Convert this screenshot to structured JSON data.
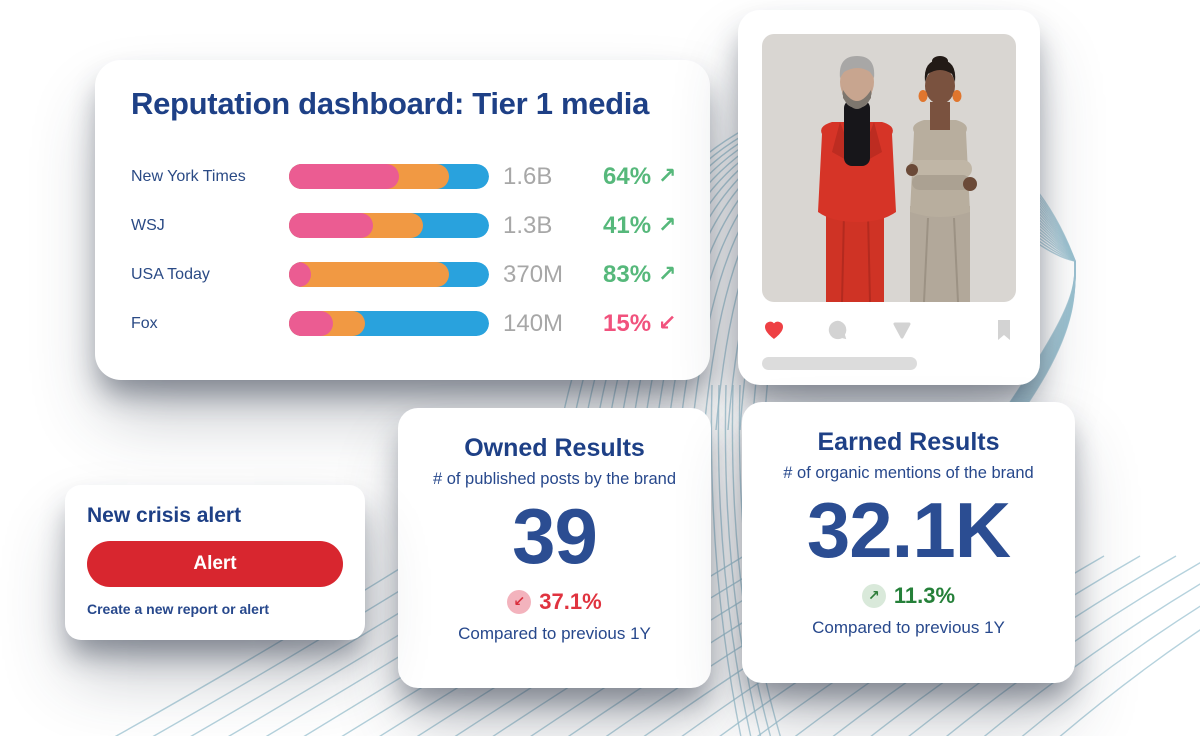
{
  "colors": {
    "navy_heading": "#1e4086",
    "navy_text": "#27488c",
    "bar_pink": "#eb5c92",
    "bar_orange": "#f19943",
    "bar_blue": "#29a2dd",
    "value_gray": "#a7a7a7",
    "trend_up_green": "#56b87b",
    "trend_down_pink": "#f1527d",
    "alert_red": "#d8262f",
    "heart_red": "#ee4044",
    "badge_down_bg": "#f3b3bd",
    "badge_down_fg": "#d92f3d",
    "badge_up_bg": "#d9e9da",
    "badge_up_fg": "#2e7d3a",
    "background_line_blue": "#9cc3d2"
  },
  "reputation_card": {
    "title": "Reputation dashboard: Tier 1 media",
    "rows": [
      {
        "label": "New York Times",
        "value": "1.6B",
        "percent": "64%",
        "trend": "up",
        "pink_pct": 55,
        "orange_pct": 80
      },
      {
        "label": "WSJ",
        "value": "1.3B",
        "percent": "41%",
        "trend": "up",
        "pink_pct": 42,
        "orange_pct": 67
      },
      {
        "label": "USA Today",
        "value": "370M",
        "percent": "83%",
        "trend": "up",
        "pink_pct": 11,
        "orange_pct": 80
      },
      {
        "label": "Fox",
        "value": "140M",
        "percent": "15%",
        "trend": "down",
        "pink_pct": 22,
        "orange_pct": 38
      }
    ]
  },
  "chart_data": {
    "type": "bar",
    "orientation": "horizontal-stacked",
    "categories": [
      "New York Times",
      "WSJ",
      "USA Today",
      "Fox"
    ],
    "reach_labels": [
      "1.6B",
      "1.3B",
      "370M",
      "140M"
    ],
    "change_percent": [
      64,
      41,
      83,
      15
    ],
    "change_direction": [
      "up",
      "up",
      "up",
      "down"
    ],
    "series": [
      {
        "name": "pink-segment",
        "share_of_bar": [
          0.55,
          0.42,
          0.11,
          0.22
        ]
      },
      {
        "name": "orange-segment",
        "share_of_bar": [
          0.25,
          0.25,
          0.69,
          0.16
        ]
      },
      {
        "name": "blue-segment",
        "share_of_bar": [
          0.2,
          0.33,
          0.2,
          0.62
        ]
      }
    ],
    "title": "Reputation dashboard: Tier 1 media",
    "legend": "none",
    "grid": false
  },
  "social_card": {
    "icons": [
      "heart",
      "comment",
      "share",
      "bookmark"
    ]
  },
  "owned_card": {
    "title": "Owned Results",
    "subtitle": "# of published posts by the brand",
    "value": "39",
    "delta": "37.1%",
    "trend": "down",
    "compare": "Compared to previous 1Y"
  },
  "earned_card": {
    "title": "Earned Results",
    "subtitle": "# of organic mentions of the brand",
    "value": "32.1K",
    "delta": "11.3%",
    "trend": "up",
    "compare": "Compared to previous 1Y"
  },
  "crisis_card": {
    "title": "New crisis alert",
    "button_label": "Alert",
    "caption": "Create a new report or alert"
  }
}
